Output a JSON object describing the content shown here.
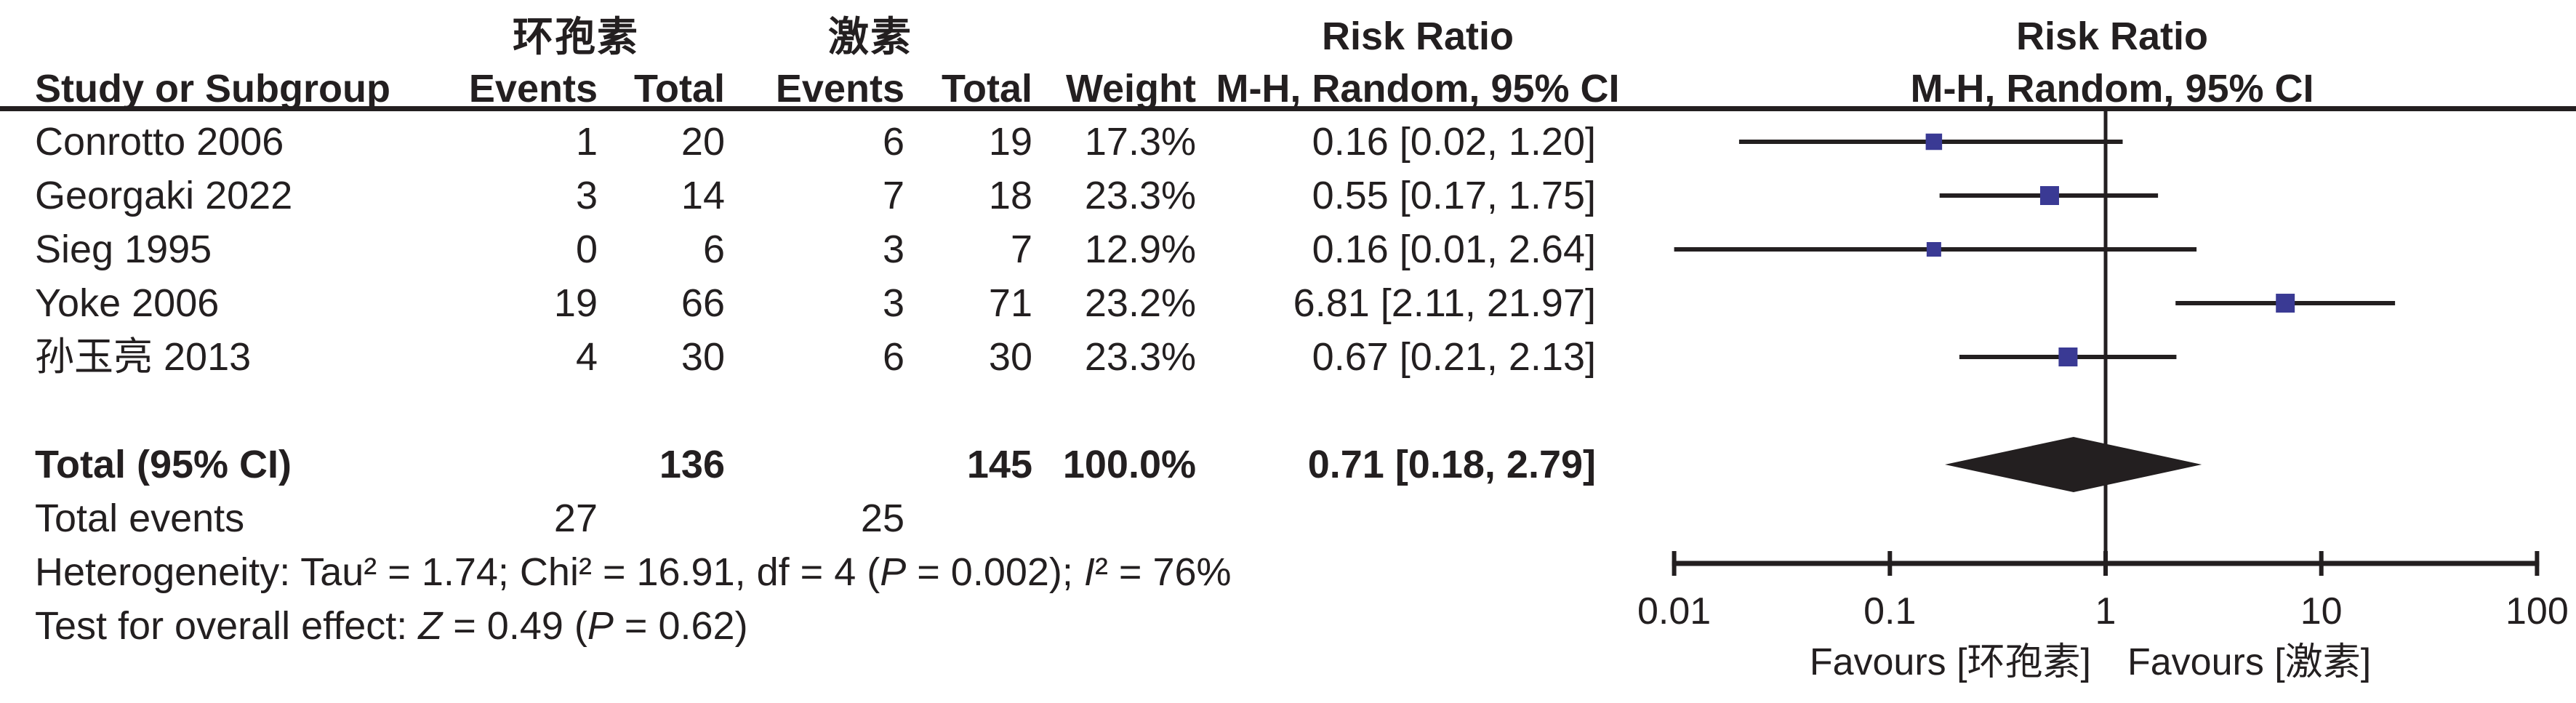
{
  "table": {
    "group1": "环孢素",
    "group2": "激素",
    "risk_ratio": "Risk Ratio",
    "col_study": "Study or Subgroup",
    "col_events": "Events",
    "col_total": "Total",
    "col_weight": "Weight",
    "col_mh": "M-H, Random, 95% CI",
    "rows": [
      {
        "study": "Conrotto 2006",
        "e1": "1",
        "t1": "20",
        "e2": "6",
        "t2": "19",
        "weight": "17.3%",
        "ci": "0.16 [0.02, 1.20]"
      },
      {
        "study": "Georgaki 2022",
        "e1": "3",
        "t1": "14",
        "e2": "7",
        "t2": "18",
        "weight": "23.3%",
        "ci": "0.55 [0.17, 1.75]"
      },
      {
        "study": "Sieg 1995",
        "e1": "0",
        "t1": "6",
        "e2": "3",
        "t2": "7",
        "weight": "12.9%",
        "ci": "0.16 [0.01, 2.64]"
      },
      {
        "study": "Yoke 2006",
        "e1": "19",
        "t1": "66",
        "e2": "3",
        "t2": "71",
        "weight": "23.2%",
        "ci": "6.81 [2.11, 21.97]"
      },
      {
        "study": "孙玉亮 2013",
        "e1": "4",
        "t1": "30",
        "e2": "6",
        "t2": "30",
        "weight": "23.3%",
        "ci": "0.67 [0.21, 2.13]"
      }
    ],
    "total": {
      "label": "Total (95% CI)",
      "t1": "136",
      "t2": "145",
      "weight": "100.0%",
      "ci": "0.71 [0.18, 2.79]"
    },
    "total_events": {
      "label": "Total events",
      "e1": "27",
      "e2": "25"
    },
    "heterogeneity": {
      "part1": "Heterogeneity: Tau² = 1.74; Chi² = 16.91, df = 4 (",
      "p": "P",
      "part2": " = 0.002); ",
      "i": "I",
      "part3": "² = 76%"
    },
    "overall_effect": {
      "part1": "Test for overall effect: ",
      "z": "Z",
      "part2": " = 0.49 (",
      "p": "P",
      "part3": " = 0.62)"
    }
  },
  "chart_data": {
    "type": "forest",
    "effect_measure": "Risk Ratio",
    "method": "M-H, Random, 95% CI",
    "x_scale": "log10",
    "x_min": 0.01,
    "x_max": 100,
    "x_ticks": [
      {
        "v": 0.01,
        "label": "0.01"
      },
      {
        "v": 0.1,
        "label": "0.1"
      },
      {
        "v": 1,
        "label": "1"
      },
      {
        "v": 10,
        "label": "10"
      },
      {
        "v": 100,
        "label": "100"
      }
    ],
    "studies": [
      {
        "name": "Conrotto 2006",
        "rr": 0.16,
        "ci_low": 0.02,
        "ci_high": 1.2,
        "weight_pct": 17.3
      },
      {
        "name": "Georgaki 2022",
        "rr": 0.55,
        "ci_low": 0.17,
        "ci_high": 1.75,
        "weight_pct": 23.3
      },
      {
        "name": "Sieg 1995",
        "rr": 0.16,
        "ci_low": 0.01,
        "ci_high": 2.64,
        "weight_pct": 12.9
      },
      {
        "name": "Yoke 2006",
        "rr": 6.81,
        "ci_low": 2.11,
        "ci_high": 21.97,
        "weight_pct": 23.2
      },
      {
        "name": "孙玉亮 2013",
        "rr": 0.67,
        "ci_low": 0.21,
        "ci_high": 2.13,
        "weight_pct": 23.3
      }
    ],
    "total": {
      "rr": 0.71,
      "ci_low": 0.18,
      "ci_high": 2.79,
      "weight_pct": 100.0
    },
    "favours_left": "Favours [环孢素]",
    "favours_right": "Favours [激素]",
    "colors": {
      "square": "#3A3A94",
      "line": "#231F20",
      "diamond": "#231F20",
      "text": "#231F20"
    }
  }
}
